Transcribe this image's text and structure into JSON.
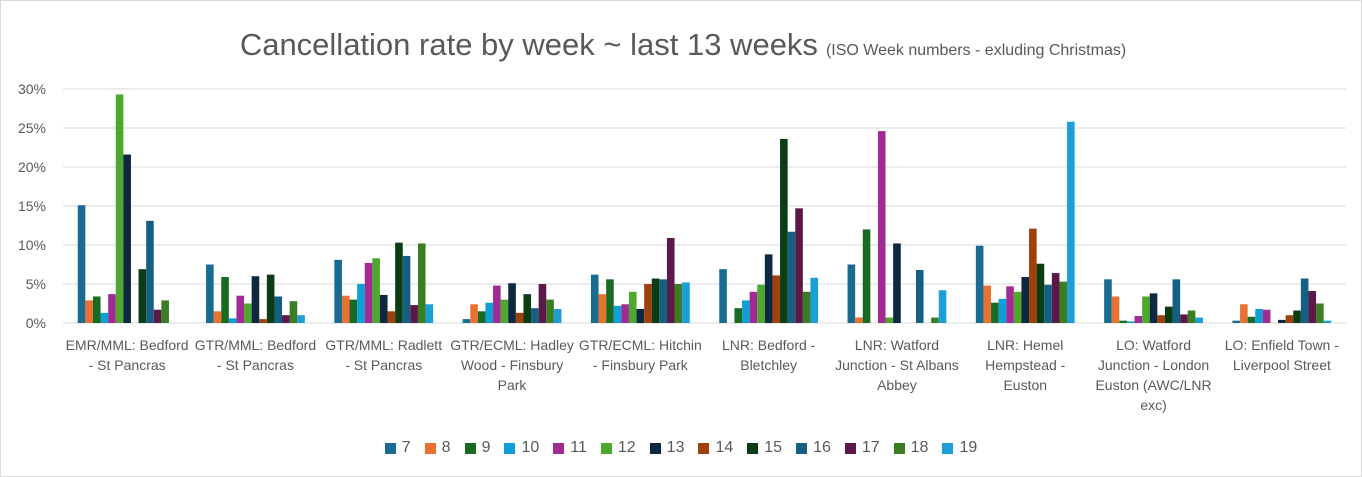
{
  "chart_data": {
    "type": "bar",
    "title": "Cancellation rate by week ~ last 13 weeks",
    "subtitle": "(ISO Week numbers - exluding Christmas)",
    "categories": [
      "EMR/MML: Bedford - St Pancras",
      "GTR/MML: Bedford - St Pancras",
      "GTR/MML: Radlett - St Pancras",
      "GTR/ECML: Hadley Wood - Finsbury Park",
      "GTR/ECML: Hitchin - Finsbury Park",
      "LNR: Bedford - Bletchley",
      "LNR: Watford Junction - St Albans Abbey",
      "LNR: Hemel Hempstead - Euston",
      "LO: Watford Junction - London Euston (AWC/LNR exc)",
      "LO: Enfield Town - Liverpool Street"
    ],
    "series": [
      {
        "name": "7",
        "color": "#196b8f",
        "values": [
          15.1,
          7.5,
          8.1,
          0.5,
          6.2,
          6.9,
          7.5,
          9.9,
          5.6,
          0.3
        ]
      },
      {
        "name": "8",
        "color": "#e97132",
        "values": [
          2.9,
          1.5,
          3.5,
          2.4,
          3.7,
          0,
          0.7,
          4.8,
          3.4,
          2.4
        ]
      },
      {
        "name": "9",
        "color": "#196b24",
        "values": [
          3.4,
          5.9,
          3.0,
          1.5,
          5.6,
          1.9,
          12.0,
          2.6,
          0.3,
          0.8
        ]
      },
      {
        "name": "10",
        "color": "#0f9ed5",
        "values": [
          1.3,
          0.6,
          5.0,
          2.6,
          2.2,
          2.9,
          0,
          3.1,
          0.2,
          1.8
        ]
      },
      {
        "name": "11",
        "color": "#a02b93",
        "values": [
          3.7,
          3.5,
          7.7,
          4.8,
          2.4,
          4.0,
          24.6,
          4.7,
          0.9,
          1.7
        ]
      },
      {
        "name": "12",
        "color": "#4ea72e",
        "values": [
          29.3,
          2.5,
          8.3,
          3.0,
          4.0,
          4.9,
          0.7,
          4.0,
          3.4,
          0
        ]
      },
      {
        "name": "13",
        "color": "#0e2841",
        "values": [
          21.6,
          6.0,
          3.6,
          5.1,
          1.8,
          8.8,
          10.2,
          5.9,
          3.8,
          0.4
        ]
      },
      {
        "name": "14",
        "color": "#a0410d",
        "values": [
          0,
          0.5,
          1.5,
          1.3,
          5.0,
          6.1,
          0,
          12.1,
          1.0,
          1.0
        ]
      },
      {
        "name": "15",
        "color": "#0b3d15",
        "values": [
          6.9,
          6.2,
          10.3,
          3.7,
          5.7,
          23.6,
          0,
          7.6,
          2.1,
          1.6
        ]
      },
      {
        "name": "16",
        "color": "#156082",
        "values": [
          13.1,
          3.4,
          8.6,
          1.9,
          5.6,
          11.7,
          6.8,
          4.9,
          5.6,
          5.7
        ]
      },
      {
        "name": "17",
        "color": "#5b1848",
        "values": [
          1.7,
          1.0,
          2.3,
          5.0,
          10.9,
          14.7,
          0,
          6.4,
          1.1,
          4.1
        ]
      },
      {
        "name": "18",
        "color": "#3b7d23",
        "values": [
          2.9,
          2.8,
          10.2,
          3.0,
          5.0,
          4.0,
          0.7,
          5.3,
          1.6,
          2.5
        ]
      },
      {
        "name": "19",
        "color": "#1a9fd9",
        "values": [
          0,
          1.0,
          2.4,
          1.8,
          5.2,
          5.8,
          4.2,
          25.8,
          0.7,
          0.3
        ]
      }
    ],
    "ylim": [
      0,
      30
    ],
    "yticks": [
      {
        "value": 0,
        "label": "0%"
      },
      {
        "value": 5,
        "label": "5%"
      },
      {
        "value": 10,
        "label": "10%"
      },
      {
        "value": 15,
        "label": "15%"
      },
      {
        "value": 20,
        "label": "20%"
      },
      {
        "value": 25,
        "label": "25%"
      },
      {
        "value": 30,
        "label": "30%"
      }
    ],
    "grid": true,
    "legend": "bottom"
  }
}
